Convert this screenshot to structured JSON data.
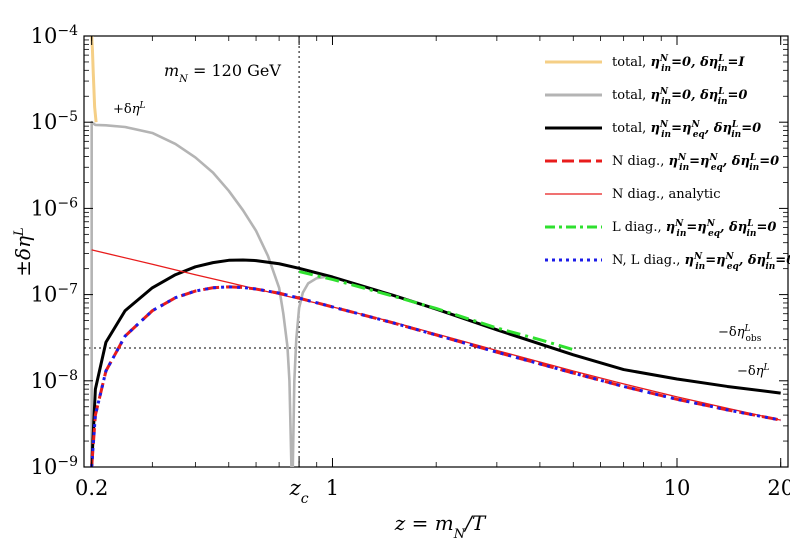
{
  "chart_data": {
    "type": "line",
    "title": "",
    "xlabel": "z = m_N/T",
    "ylabel": "±δη^L",
    "x_scale": "log",
    "y_scale": "log",
    "xlim": [
      0.19,
      21
    ],
    "ylim": [
      1e-09,
      0.0001
    ],
    "grid": false,
    "legend_position": "top-right",
    "x_ticks": [
      {
        "value": 0.2,
        "label": "0.2"
      },
      {
        "value": 0.8,
        "label": "z_c"
      },
      {
        "value": 1,
        "label": "1"
      },
      {
        "value": 10,
        "label": "10"
      },
      {
        "value": 20,
        "label": "20"
      }
    ],
    "y_ticks": [
      {
        "value": 1e-09,
        "base": "10",
        "exp": "−9"
      },
      {
        "value": 1e-08,
        "base": "10",
        "exp": "−8"
      },
      {
        "value": 1e-07,
        "base": "10",
        "exp": "−7"
      },
      {
        "value": 1e-06,
        "base": "10",
        "exp": "−6"
      },
      {
        "value": 1e-05,
        "base": "10",
        "exp": "−5"
      },
      {
        "value": 0.0001,
        "base": "10",
        "exp": "−4"
      }
    ],
    "annotations": {
      "mass": "m_N = 120 GeV",
      "plus_label": "+δη^L",
      "obs_label": "−δη^L_obs",
      "minus_label": "−δη^L",
      "zc_label": "z_c"
    },
    "reference_lines": {
      "z_c": 0.8,
      "eta_obs": 2.4e-08
    },
    "series": [
      {
        "name": "total, η_in^N=0, δη_in^L=I",
        "color": "#f5cf86",
        "width": 3,
        "dash": "",
        "points": [
          [
            0.2,
            0.0001
          ],
          [
            0.201,
            7e-05
          ],
          [
            0.202,
            4e-05
          ],
          [
            0.204,
            1.5e-05
          ],
          [
            0.206,
            1e-05
          ]
        ]
      },
      {
        "name": "total, η_in^N=0, δη_in^L=0",
        "color": "#b4b4b4",
        "width": 2.6,
        "dash": "",
        "points": [
          [
            0.2,
            1e-09
          ],
          [
            0.2,
            1e-05
          ],
          [
            0.205,
            9.3e-06
          ],
          [
            0.22,
            9.2e-06
          ],
          [
            0.25,
            8.8e-06
          ],
          [
            0.3,
            7.5e-06
          ],
          [
            0.35,
            5.6e-06
          ],
          [
            0.4,
            3.9e-06
          ],
          [
            0.45,
            2.6e-06
          ],
          [
            0.5,
            1.6e-06
          ],
          [
            0.55,
            9.5e-07
          ],
          [
            0.6,
            5.5e-07
          ],
          [
            0.65,
            2.8e-07
          ],
          [
            0.7,
            1.2e-07
          ],
          [
            0.72,
            6e-08
          ],
          [
            0.74,
            2.5e-08
          ],
          [
            0.75,
            1e-08
          ],
          [
            0.76,
            1e-09
          ],
          [
            0.767,
            1e-09
          ],
          [
            0.775,
            1e-08
          ],
          [
            0.785,
            3e-08
          ],
          [
            0.8,
            7e-08
          ],
          [
            0.82,
            1.05e-07
          ],
          [
            0.85,
            1.35e-07
          ],
          [
            0.9,
            1.55e-07
          ],
          [
            0.95,
            1.6e-07
          ]
        ]
      },
      {
        "name": "total, η_in^N=η_eq^N, δη_in^L=0",
        "color": "#000000",
        "width": 3,
        "dash": "",
        "points": [
          [
            0.2,
            1e-09
          ],
          [
            0.205,
            8e-09
          ],
          [
            0.22,
            2.8e-08
          ],
          [
            0.25,
            6.5e-08
          ],
          [
            0.3,
            1.2e-07
          ],
          [
            0.35,
            1.7e-07
          ],
          [
            0.4,
            2.1e-07
          ],
          [
            0.45,
            2.35e-07
          ],
          [
            0.5,
            2.5e-07
          ],
          [
            0.55,
            2.52e-07
          ],
          [
            0.6,
            2.48e-07
          ],
          [
            0.7,
            2.28e-07
          ],
          [
            0.8,
            2.02e-07
          ],
          [
            1,
            1.6e-07
          ],
          [
            1.5,
            9.8e-08
          ],
          [
            2,
            6.8e-08
          ],
          [
            3,
            3.9e-08
          ],
          [
            5,
            2e-08
          ],
          [
            7,
            1.35e-08
          ],
          [
            10,
            1.05e-08
          ],
          [
            14,
            8.6e-09
          ],
          [
            20,
            7.2e-09
          ]
        ]
      },
      {
        "name": "N diag., η_in^N=η_eq^N, δη_in^L=0",
        "color": "#e81c1c",
        "width": 3,
        "dash": "16,7",
        "points": [
          [
            0.2,
            1e-09
          ],
          [
            0.205,
            4e-09
          ],
          [
            0.22,
            1.3e-08
          ],
          [
            0.25,
            3.3e-08
          ],
          [
            0.3,
            6.5e-08
          ],
          [
            0.35,
            9.2e-08
          ],
          [
            0.4,
            1.1e-07
          ],
          [
            0.45,
            1.2e-07
          ],
          [
            0.5,
            1.23e-07
          ],
          [
            0.55,
            1.21e-07
          ],
          [
            0.6,
            1.16e-07
          ],
          [
            0.7,
            1.04e-07
          ],
          [
            0.8,
            9.1e-08
          ],
          [
            1,
            7.2e-08
          ],
          [
            1.5,
            4.7e-08
          ],
          [
            2,
            3.4e-08
          ],
          [
            3,
            2.15e-08
          ],
          [
            5,
            1.23e-08
          ],
          [
            7,
            8.6e-09
          ],
          [
            10,
            6.1e-09
          ],
          [
            14,
            4.6e-09
          ],
          [
            20,
            3.5e-09
          ]
        ]
      },
      {
        "name": "N diag., analytic",
        "color": "#e81c1c",
        "width": 1.3,
        "dash": "",
        "points": [
          [
            0.2,
            3.3e-07
          ],
          [
            0.3,
            2.25e-07
          ],
          [
            0.4,
            1.7e-07
          ],
          [
            0.5,
            1.38e-07
          ],
          [
            0.6,
            1.16e-07
          ],
          [
            0.8,
            8.9e-08
          ],
          [
            1,
            7.2e-08
          ],
          [
            1.5,
            4.8e-08
          ],
          [
            2,
            3.5e-08
          ],
          [
            3,
            2.25e-08
          ],
          [
            5,
            1.3e-08
          ],
          [
            7,
            9.2e-09
          ],
          [
            10,
            6.5e-09
          ],
          [
            14,
            4.8e-09
          ],
          [
            20,
            3.5e-09
          ]
        ]
      },
      {
        "name": "L diag., η_in^N=η_eq^N, δη_in^L=0",
        "color": "#2fe02f",
        "width": 3,
        "dash": "14,5,3,5",
        "points": [
          [
            0.8,
            1.85e-07
          ],
          [
            1,
            1.5e-07
          ],
          [
            1.5,
            9.6e-08
          ],
          [
            2,
            6.9e-08
          ],
          [
            3,
            4.1e-08
          ],
          [
            4,
            3e-08
          ],
          [
            5,
            2.3e-08
          ]
        ]
      },
      {
        "name": "N, L diag., η_in^N=η_eq^N, δη_in^L=0",
        "color": "#1c1ce8",
        "width": 3,
        "dash": "3,5",
        "points": [
          [
            0.2,
            1e-09
          ],
          [
            0.205,
            4e-09
          ],
          [
            0.22,
            1.3e-08
          ],
          [
            0.25,
            3.3e-08
          ],
          [
            0.3,
            6.5e-08
          ],
          [
            0.35,
            9.2e-08
          ],
          [
            0.4,
            1.1e-07
          ],
          [
            0.45,
            1.2e-07
          ],
          [
            0.5,
            1.23e-07
          ],
          [
            0.55,
            1.21e-07
          ],
          [
            0.6,
            1.16e-07
          ],
          [
            0.7,
            1.04e-07
          ],
          [
            0.8,
            9.1e-08
          ],
          [
            1,
            7.2e-08
          ],
          [
            1.5,
            4.7e-08
          ],
          [
            2,
            3.4e-08
          ],
          [
            3,
            2.15e-08
          ],
          [
            5,
            1.23e-08
          ],
          [
            7,
            8.6e-09
          ],
          [
            10,
            6.1e-09
          ],
          [
            14,
            4.6e-09
          ],
          [
            20,
            3.5e-09
          ]
        ]
      }
    ],
    "legend": [
      {
        "pre": "total, ",
        "math": "η<tspan baseline-shift=\"super\" font-size=\"9\">N</tspan><tspan baseline-shift=\"sub\" font-size=\"9\" dx=\"-7\">in</tspan>=0, δη<tspan baseline-shift=\"super\" font-size=\"9\">L</tspan><tspan baseline-shift=\"sub\" font-size=\"9\" dx=\"-7\">in</tspan>=I",
        "color": "#f5cf86",
        "width": 3,
        "dash": ""
      },
      {
        "pre": "total, ",
        "math": "η<tspan baseline-shift=\"super\" font-size=\"9\">N</tspan><tspan baseline-shift=\"sub\" font-size=\"9\" dx=\"-7\">in</tspan>=0, δη<tspan baseline-shift=\"super\" font-size=\"9\">L</tspan><tspan baseline-shift=\"sub\" font-size=\"9\" dx=\"-7\">in</tspan>=0",
        "color": "#b4b4b4",
        "width": 3,
        "dash": ""
      },
      {
        "pre": "total, ",
        "math": "η<tspan baseline-shift=\"super\" font-size=\"9\">N</tspan><tspan baseline-shift=\"sub\" font-size=\"9\" dx=\"-7\">in</tspan>=η<tspan baseline-shift=\"super\" font-size=\"9\">N</tspan><tspan baseline-shift=\"sub\" font-size=\"9\" dx=\"-7\">eq</tspan>, δη<tspan baseline-shift=\"super\" font-size=\"9\">L</tspan><tspan baseline-shift=\"sub\" font-size=\"9\" dx=\"-7\">in</tspan>=0",
        "color": "#000000",
        "width": 3,
        "dash": ""
      },
      {
        "pre": "N diag., ",
        "math": "η<tspan baseline-shift=\"super\" font-size=\"9\">N</tspan><tspan baseline-shift=\"sub\" font-size=\"9\" dx=\"-7\">in</tspan>=η<tspan baseline-shift=\"super\" font-size=\"9\">N</tspan><tspan baseline-shift=\"sub\" font-size=\"9\" dx=\"-7\">eq</tspan>, δη<tspan baseline-shift=\"super\" font-size=\"9\">L</tspan><tspan baseline-shift=\"sub\" font-size=\"9\" dx=\"-7\">in</tspan>=0",
        "color": "#e81c1c",
        "width": 3,
        "dash": "12,5"
      },
      {
        "pre": "N diag., analytic",
        "math": "",
        "color": "#e81c1c",
        "width": 1.3,
        "dash": ""
      },
      {
        "pre": "L diag., ",
        "math": "η<tspan baseline-shift=\"super\" font-size=\"9\">N</tspan><tspan baseline-shift=\"sub\" font-size=\"9\" dx=\"-7\">in</tspan>=η<tspan baseline-shift=\"super\" font-size=\"9\">N</tspan><tspan baseline-shift=\"sub\" font-size=\"9\" dx=\"-7\">eq</tspan>, δη<tspan baseline-shift=\"super\" font-size=\"9\">L</tspan><tspan baseline-shift=\"sub\" font-size=\"9\" dx=\"-7\">in</tspan>=0",
        "color": "#2fe02f",
        "width": 3,
        "dash": "10,4,3,4"
      },
      {
        "pre": "N, L diag., ",
        "math": "η<tspan baseline-shift=\"super\" font-size=\"9\">N</tspan><tspan baseline-shift=\"sub\" font-size=\"9\" dx=\"-7\">in</tspan>=η<tspan baseline-shift=\"super\" font-size=\"9\">N</tspan><tspan baseline-shift=\"sub\" font-size=\"9\" dx=\"-7\">eq</tspan>, δη<tspan baseline-shift=\"super\" font-size=\"9\">L</tspan><tspan baseline-shift=\"sub\" font-size=\"9\" dx=\"-7\">in</tspan>=0",
        "color": "#1c1ce8",
        "width": 3,
        "dash": "3,4"
      }
    ]
  }
}
